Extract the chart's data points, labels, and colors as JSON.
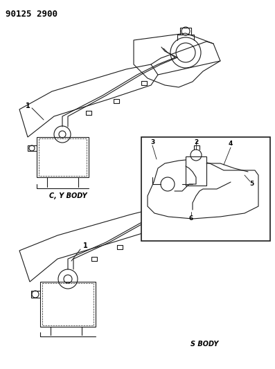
{
  "title": "90125 2900",
  "title_fontsize": 9,
  "title_fontweight": "bold",
  "bg_color": "#ffffff",
  "label_cy_body": "C, Y BODY",
  "label_s_body": "S BODY",
  "line_color": "#1a1a1a",
  "text_color": "#000000"
}
